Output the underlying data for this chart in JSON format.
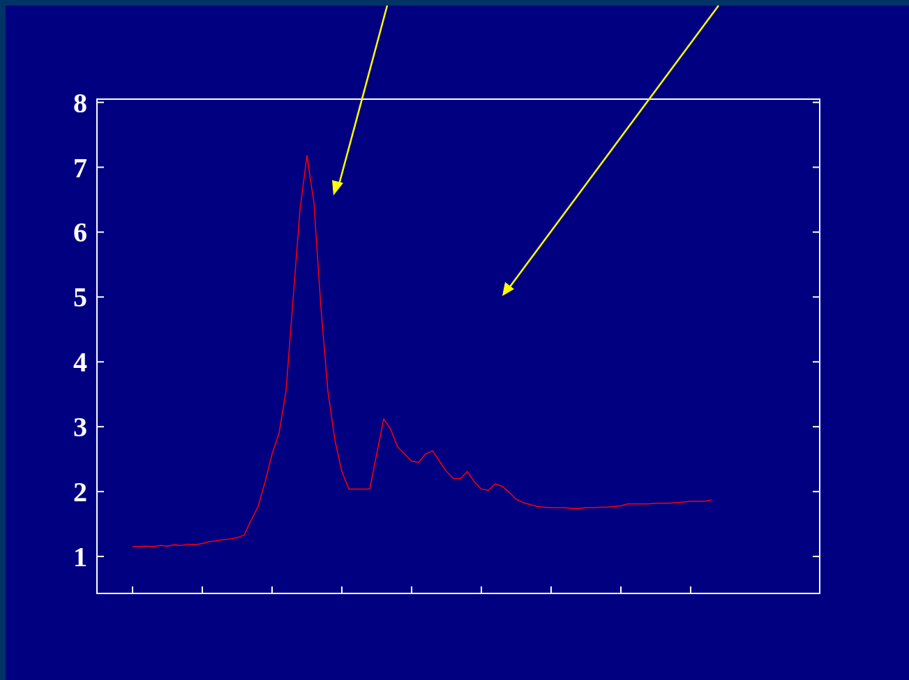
{
  "chart_data": {
    "type": "line",
    "categories": [
      null,
      null,
      null,
      null,
      null,
      null,
      null,
      null,
      null,
      null,
      null,
      null,
      null,
      null,
      null,
      null,
      null,
      null,
      null,
      null,
      null,
      null,
      null,
      null,
      null,
      null,
      null,
      null,
      null,
      null,
      null,
      null,
      null,
      null,
      null,
      null,
      null,
      null,
      null,
      null,
      null,
      null,
      null,
      null,
      null,
      null,
      null,
      null,
      null,
      null,
      null,
      null,
      null,
      null,
      null,
      null,
      null,
      null,
      null,
      null,
      null,
      null,
      null,
      null,
      null,
      null,
      null,
      null,
      null,
      null,
      null,
      null,
      null,
      null,
      null,
      null,
      null,
      null,
      null,
      null,
      null,
      null,
      null,
      null
    ],
    "series": [
      {
        "color": "#ff0000",
        "values": [
          1.15,
          1.15,
          1.16,
          1.15,
          1.17,
          1.16,
          1.18,
          1.17,
          1.19,
          1.18,
          1.2,
          1.23,
          1.24,
          1.26,
          1.27,
          1.29,
          1.33,
          1.56,
          1.77,
          2.15,
          2.58,
          2.9,
          3.55,
          4.95,
          6.34,
          7.18,
          6.45,
          4.84,
          3.55,
          2.8,
          2.31,
          2.04,
          2.04,
          2.04,
          2.04,
          2.58,
          3.12,
          2.96,
          2.69,
          2.58,
          2.47,
          2.45,
          2.58,
          2.63,
          2.47,
          2.31,
          2.2,
          2.2,
          2.31,
          2.15,
          2.04,
          2.02,
          2.12,
          2.08,
          1.99,
          1.88,
          1.83,
          1.8,
          1.77,
          1.76,
          1.75,
          1.75,
          1.75,
          1.74,
          1.74,
          1.75,
          1.75,
          1.76,
          1.76,
          1.77,
          1.78,
          1.81,
          1.81,
          1.81,
          1.81,
          1.82,
          1.82,
          1.82,
          1.83,
          1.84,
          1.85,
          1.85,
          1.85,
          1.87
        ]
      }
    ],
    "ylim": [
      0.43,
      8.05
    ],
    "yticks": [
      1,
      2,
      3,
      4,
      5,
      6,
      7,
      8
    ],
    "tick_labels": "y",
    "grid": false,
    "marker": "none",
    "line_style": "solid"
  }
}
